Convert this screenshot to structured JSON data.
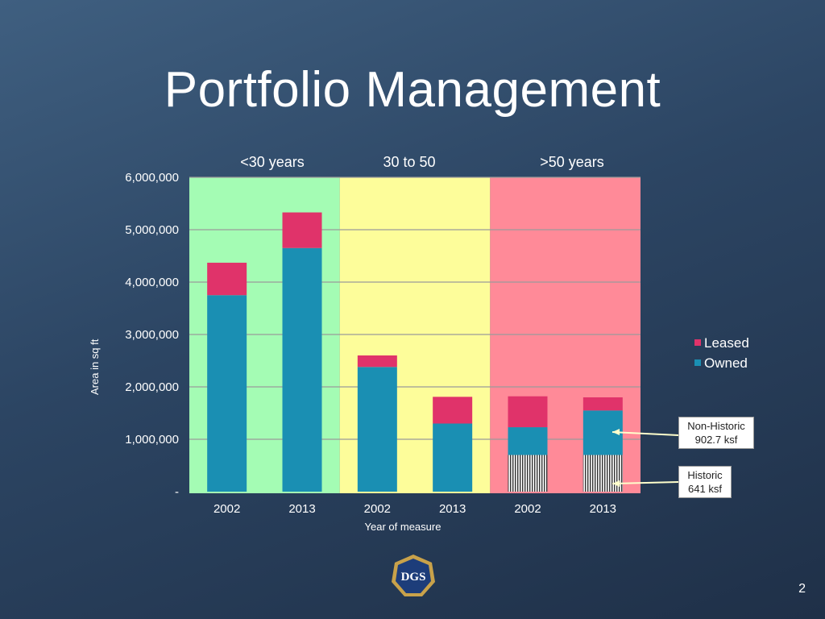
{
  "slide": {
    "title": "Portfolio Management",
    "page_number": "2",
    "logo_text": "DGS"
  },
  "callouts": {
    "non_historic": [
      "Non-Historic",
      "902.7 ksf"
    ],
    "historic": [
      "Historic",
      "641 ksf"
    ]
  },
  "colors": {
    "leased": "#e0336a",
    "owned": "#1a8fb3",
    "band_lt30": "#a4fcb4",
    "band_30to50": "#fdfd9a",
    "band_gt50": "#ff8a98",
    "historic_hatch": "#333333"
  },
  "chart_data": {
    "type": "bar",
    "stacked": true,
    "xlabel": "Year of measure",
    "ylabel": "Area in sq ft",
    "ylim": [
      0,
      6000000
    ],
    "y_ticks": [
      0,
      1000000,
      2000000,
      3000000,
      4000000,
      5000000,
      6000000
    ],
    "y_tick_labels": [
      "-",
      "1,000,000",
      "2,000,000",
      "3,000,000",
      "4,000,000",
      "5,000,000",
      "6,000,000"
    ],
    "categories": [
      "2002",
      "2013",
      "2002",
      "2013",
      "2002",
      "2013"
    ],
    "groups": [
      {
        "label": "<30 years",
        "categories": [
          0,
          1
        ]
      },
      {
        "label": "30 to 50",
        "categories": [
          2,
          3
        ]
      },
      {
        "label": ">50 years",
        "categories": [
          4,
          5
        ]
      }
    ],
    "series": [
      {
        "name": "Owned",
        "values": [
          3750000,
          4650000,
          2380000,
          1300000,
          1230000,
          1550000
        ]
      },
      {
        "name": "Leased",
        "values": [
          620000,
          680000,
          220000,
          510000,
          590000,
          250000
        ]
      }
    ],
    "historic_owned": [
      null,
      null,
      null,
      null,
      700000,
      700000
    ],
    "legend": {
      "placement": "right",
      "entries": [
        "Leased",
        "Owned"
      ]
    },
    "grid": true
  }
}
